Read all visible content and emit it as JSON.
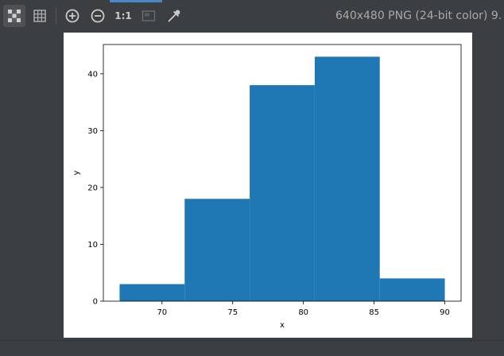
{
  "toolbar": {
    "one_to_one_label": "1:1",
    "icons": [
      "checkerboard-icon",
      "grid-icon",
      "zoom-in-icon",
      "zoom-out-icon",
      "actual-size-icon",
      "fit-icon",
      "color-picker-icon"
    ]
  },
  "image_info": "640x480 PNG (24-bit color) 9.",
  "colors": {
    "bar": "#1f77b4",
    "background": "#3c3f41",
    "accent": "#4a88c7"
  },
  "chart_data": {
    "type": "bar",
    "bins": [
      {
        "start": 67,
        "end": 71.6,
        "value": 3
      },
      {
        "start": 71.6,
        "end": 76.2,
        "value": 18
      },
      {
        "start": 76.2,
        "end": 80.8,
        "value": 38
      },
      {
        "start": 80.8,
        "end": 85.4,
        "value": 43
      },
      {
        "start": 85.4,
        "end": 90,
        "value": 4
      }
    ],
    "xlabel": "x",
    "ylabel": "y",
    "xlim": [
      65.85,
      91.15
    ],
    "ylim": [
      0,
      45.15
    ],
    "xticks": [
      70,
      75,
      80,
      85,
      90
    ],
    "yticks": [
      0,
      10,
      20,
      30,
      40
    ],
    "grid": false
  }
}
